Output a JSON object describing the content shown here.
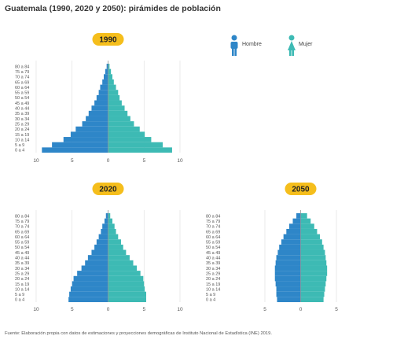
{
  "page_title": "Guatemala (1990, 2020 y 2050): pirámides de población",
  "source": "Fuente: Elaboración propia con datos de estimaciones y proyecciones demográficas de Instituto Nacional de Estadística (INE) 2019.",
  "colors": {
    "hombre": "#2e86c8",
    "mujer": "#3dbab4",
    "badge": "#f5be1c",
    "grid": "#dddddd",
    "axis": "#555555"
  },
  "legend": [
    {
      "label": "Hombre",
      "icon": "male-person-icon",
      "color": "#2e86c8"
    },
    {
      "label": "Mujer",
      "icon": "female-person-icon",
      "color": "#3dbab4"
    }
  ],
  "chart_data": [
    {
      "type": "bar",
      "title": "1990",
      "orientation": "horizontal-population-pyramid",
      "categories": [
        "0 a 4",
        "5 a 9",
        "10 a 14",
        "15 a 19",
        "20 a 24",
        "25 a 29",
        "30 a 34",
        "35 a 39",
        "40 a 44",
        "45 a 49",
        "50 a 54",
        "55 a 59",
        "60 a 64",
        "65 a 69",
        "70 a 74",
        "75 a 79",
        "80 a 84"
      ],
      "series": [
        {
          "name": "Hombre",
          "values": [
            9.2,
            7.8,
            6.2,
            5.2,
            4.5,
            3.6,
            3.1,
            2.7,
            2.3,
            1.9,
            1.6,
            1.3,
            1.1,
            0.8,
            0.6,
            0.4,
            0.2
          ]
        },
        {
          "name": "Mujer",
          "values": [
            8.9,
            7.6,
            6.0,
            5.1,
            4.4,
            3.6,
            3.1,
            2.7,
            2.3,
            1.9,
            1.6,
            1.4,
            1.1,
            0.8,
            0.6,
            0.4,
            0.2
          ]
        }
      ],
      "xlim": [
        -10,
        10
      ],
      "tick_labels": [
        "10",
        "5",
        "0",
        "5",
        "10"
      ],
      "grid": true
    },
    {
      "type": "bar",
      "title": "2020",
      "orientation": "horizontal-population-pyramid",
      "categories": [
        "0 a 4",
        "5 a 9",
        "10 a 14",
        "15 a 19",
        "20 a 24",
        "25 a 29",
        "30 a 34",
        "35 a 39",
        "40 a 44",
        "45 a 49",
        "50 a 54",
        "55 a 59",
        "60 a 64",
        "65 a 69",
        "70 a 74",
        "75 a 79",
        "80 a 84"
      ],
      "series": [
        {
          "name": "Hombre",
          "values": [
            5.5,
            5.4,
            5.2,
            5.0,
            4.8,
            4.3,
            3.7,
            3.2,
            2.8,
            2.3,
            1.9,
            1.6,
            1.3,
            1.0,
            0.8,
            0.5,
            0.3
          ]
        },
        {
          "name": "Mujer",
          "values": [
            5.3,
            5.3,
            5.1,
            5.0,
            4.9,
            4.5,
            4.0,
            3.5,
            3.0,
            2.5,
            2.1,
            1.8,
            1.4,
            1.1,
            0.9,
            0.6,
            0.3
          ]
        }
      ],
      "xlim": [
        -10,
        10
      ],
      "tick_labels": [
        "10",
        "5",
        "0",
        "5",
        "10"
      ],
      "grid": true
    },
    {
      "type": "bar",
      "title": "2050",
      "orientation": "horizontal-population-pyramid",
      "categories": [
        "0 a 4",
        "5 a 9",
        "10 a 14",
        "15 a 19",
        "20 a 24",
        "25 a 29",
        "30 a 34",
        "35 a 39",
        "40 a 44",
        "45 a 49",
        "50 a 54",
        "55 a 59",
        "60 a 64",
        "65 a 69",
        "70 a 74",
        "75 a 79",
        "80 a 84"
      ],
      "series": [
        {
          "name": "Hombre",
          "values": [
            3.3,
            3.4,
            3.4,
            3.5,
            3.6,
            3.6,
            3.6,
            3.5,
            3.4,
            3.2,
            3.0,
            2.7,
            2.4,
            2.0,
            1.6,
            1.1,
            0.6
          ]
        },
        {
          "name": "Mujer",
          "values": [
            3.2,
            3.3,
            3.4,
            3.5,
            3.6,
            3.7,
            3.7,
            3.6,
            3.5,
            3.4,
            3.2,
            3.0,
            2.7,
            2.3,
            1.9,
            1.4,
            0.9
          ]
        }
      ],
      "xlim": [
        -5,
        5
      ],
      "tick_labels": [
        "5",
        "0",
        "5"
      ],
      "grid": true
    }
  ]
}
